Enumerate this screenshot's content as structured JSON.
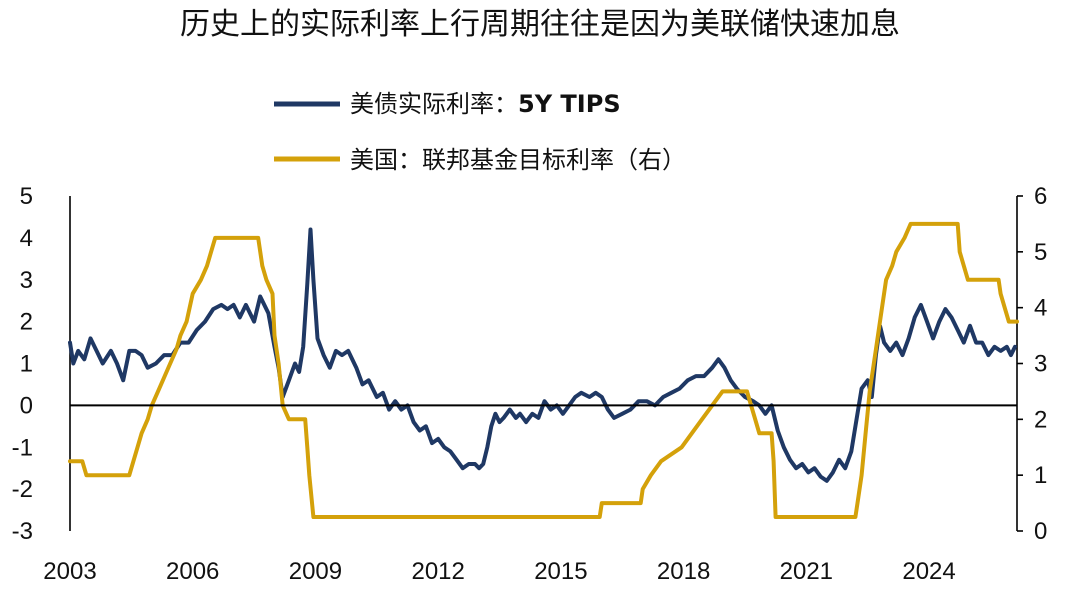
{
  "chart_data": {
    "type": "line",
    "title": "历史上的实际利率上行周期往往是因为美联储快速加息",
    "x_ticks": [
      "2003",
      "2006",
      "2009",
      "2012",
      "2015",
      "2018",
      "2021",
      "2024"
    ],
    "x_range": [
      2003.0,
      2026.15
    ],
    "left_axis": {
      "ylim": [
        -3,
        5
      ],
      "ticks": [
        "5",
        "4",
        "3",
        "2",
        "1",
        "0",
        "-1",
        "-2",
        "-3"
      ]
    },
    "right_axis": {
      "ylim": [
        0,
        6
      ],
      "ticks": [
        "6",
        "5",
        "4",
        "3",
        "2",
        "1",
        "0"
      ]
    },
    "legend": {
      "placement": "top-center",
      "series1_prefix": "美债实际利率：",
      "series1_suffix": "5Y TIPS",
      "series2_label": "美国：联邦基金目标利率（右）"
    },
    "colors": {
      "tips": "#1F3864",
      "fed": "#D4A10A"
    },
    "series": [
      {
        "axis": "left",
        "points": [
          [
            2003.0,
            1.5
          ],
          [
            2003.08,
            1.0
          ],
          [
            2003.2,
            1.3
          ],
          [
            2003.35,
            1.1
          ],
          [
            2003.5,
            1.6
          ],
          [
            2003.65,
            1.3
          ],
          [
            2003.8,
            1.0
          ],
          [
            2004.0,
            1.3
          ],
          [
            2004.15,
            1.0
          ],
          [
            2004.3,
            0.6
          ],
          [
            2004.45,
            1.3
          ],
          [
            2004.6,
            1.3
          ],
          [
            2004.75,
            1.2
          ],
          [
            2004.9,
            0.9
          ],
          [
            2005.1,
            1.0
          ],
          [
            2005.3,
            1.2
          ],
          [
            2005.5,
            1.2
          ],
          [
            2005.7,
            1.5
          ],
          [
            2005.9,
            1.5
          ],
          [
            2006.1,
            1.8
          ],
          [
            2006.3,
            2.0
          ],
          [
            2006.5,
            2.3
          ],
          [
            2006.7,
            2.4
          ],
          [
            2006.85,
            2.3
          ],
          [
            2007.0,
            2.4
          ],
          [
            2007.15,
            2.1
          ],
          [
            2007.3,
            2.4
          ],
          [
            2007.5,
            2.0
          ],
          [
            2007.65,
            2.6
          ],
          [
            2007.85,
            2.2
          ],
          [
            2008.0,
            1.4
          ],
          [
            2008.1,
            0.9
          ],
          [
            2008.2,
            0.2
          ],
          [
            2008.35,
            0.6
          ],
          [
            2008.5,
            1.0
          ],
          [
            2008.6,
            0.8
          ],
          [
            2008.7,
            1.4
          ],
          [
            2008.8,
            2.9
          ],
          [
            2008.88,
            4.2
          ],
          [
            2008.95,
            3.0
          ],
          [
            2009.05,
            1.6
          ],
          [
            2009.2,
            1.2
          ],
          [
            2009.35,
            0.9
          ],
          [
            2009.5,
            1.3
          ],
          [
            2009.65,
            1.2
          ],
          [
            2009.8,
            1.3
          ],
          [
            2010.0,
            0.9
          ],
          [
            2010.15,
            0.5
          ],
          [
            2010.3,
            0.6
          ],
          [
            2010.5,
            0.2
          ],
          [
            2010.65,
            0.3
          ],
          [
            2010.8,
            -0.1
          ],
          [
            2010.95,
            0.1
          ],
          [
            2011.1,
            -0.1
          ],
          [
            2011.25,
            0.0
          ],
          [
            2011.4,
            -0.4
          ],
          [
            2011.55,
            -0.6
          ],
          [
            2011.7,
            -0.5
          ],
          [
            2011.85,
            -0.9
          ],
          [
            2012.0,
            -0.8
          ],
          [
            2012.15,
            -1.0
          ],
          [
            2012.3,
            -1.1
          ],
          [
            2012.45,
            -1.3
          ],
          [
            2012.6,
            -1.5
          ],
          [
            2012.75,
            -1.4
          ],
          [
            2012.9,
            -1.4
          ],
          [
            2013.0,
            -1.5
          ],
          [
            2013.1,
            -1.4
          ],
          [
            2013.2,
            -1.0
          ],
          [
            2013.3,
            -0.5
          ],
          [
            2013.4,
            -0.2
          ],
          [
            2013.5,
            -0.4
          ],
          [
            2013.6,
            -0.3
          ],
          [
            2013.75,
            -0.1
          ],
          [
            2013.9,
            -0.3
          ],
          [
            2014.0,
            -0.2
          ],
          [
            2014.15,
            -0.4
          ],
          [
            2014.3,
            -0.2
          ],
          [
            2014.45,
            -0.3
          ],
          [
            2014.6,
            0.1
          ],
          [
            2014.75,
            -0.1
          ],
          [
            2014.9,
            0.0
          ],
          [
            2015.05,
            -0.2
          ],
          [
            2015.2,
            0.0
          ],
          [
            2015.35,
            0.2
          ],
          [
            2015.5,
            0.3
          ],
          [
            2015.7,
            0.2
          ],
          [
            2015.85,
            0.3
          ],
          [
            2016.0,
            0.2
          ],
          [
            2016.15,
            -0.1
          ],
          [
            2016.3,
            -0.3
          ],
          [
            2016.5,
            -0.2
          ],
          [
            2016.7,
            -0.1
          ],
          [
            2016.9,
            0.1
          ],
          [
            2017.1,
            0.1
          ],
          [
            2017.3,
            0.0
          ],
          [
            2017.5,
            0.2
          ],
          [
            2017.7,
            0.3
          ],
          [
            2017.9,
            0.4
          ],
          [
            2018.1,
            0.6
          ],
          [
            2018.3,
            0.7
          ],
          [
            2018.5,
            0.7
          ],
          [
            2018.7,
            0.9
          ],
          [
            2018.85,
            1.1
          ],
          [
            2019.0,
            0.9
          ],
          [
            2019.15,
            0.6
          ],
          [
            2019.3,
            0.4
          ],
          [
            2019.5,
            0.2
          ],
          [
            2019.7,
            0.1
          ],
          [
            2019.85,
            0.0
          ],
          [
            2020.0,
            -0.2
          ],
          [
            2020.15,
            0.0
          ],
          [
            2020.3,
            -0.6
          ],
          [
            2020.45,
            -1.0
          ],
          [
            2020.6,
            -1.3
          ],
          [
            2020.75,
            -1.5
          ],
          [
            2020.9,
            -1.4
          ],
          [
            2021.05,
            -1.6
          ],
          [
            2021.2,
            -1.5
          ],
          [
            2021.35,
            -1.7
          ],
          [
            2021.5,
            -1.8
          ],
          [
            2021.65,
            -1.6
          ],
          [
            2021.8,
            -1.3
          ],
          [
            2021.95,
            -1.5
          ],
          [
            2022.1,
            -1.1
          ],
          [
            2022.2,
            -0.5
          ],
          [
            2022.35,
            0.4
          ],
          [
            2022.5,
            0.6
          ],
          [
            2022.6,
            0.2
          ],
          [
            2022.7,
            1.2
          ],
          [
            2022.8,
            1.9
          ],
          [
            2022.9,
            1.5
          ],
          [
            2023.05,
            1.3
          ],
          [
            2023.2,
            1.5
          ],
          [
            2023.35,
            1.2
          ],
          [
            2023.5,
            1.6
          ],
          [
            2023.65,
            2.1
          ],
          [
            2023.8,
            2.4
          ],
          [
            2023.95,
            2.0
          ],
          [
            2024.1,
            1.6
          ],
          [
            2024.25,
            2.0
          ],
          [
            2024.4,
            2.3
          ],
          [
            2024.55,
            2.1
          ],
          [
            2024.7,
            1.8
          ],
          [
            2024.85,
            1.5
          ],
          [
            2025.0,
            1.9
          ],
          [
            2025.15,
            1.5
          ],
          [
            2025.3,
            1.5
          ],
          [
            2025.45,
            1.2
          ],
          [
            2025.6,
            1.4
          ],
          [
            2025.75,
            1.3
          ],
          [
            2025.9,
            1.4
          ],
          [
            2026.0,
            1.2
          ],
          [
            2026.1,
            1.4
          ]
        ]
      },
      {
        "axis": "right",
        "points": [
          [
            2003.0,
            1.25
          ],
          [
            2003.3,
            1.25
          ],
          [
            2003.4,
            1.0
          ],
          [
            2004.45,
            1.0
          ],
          [
            2004.55,
            1.25
          ],
          [
            2004.65,
            1.5
          ],
          [
            2004.75,
            1.75
          ],
          [
            2004.9,
            2.0
          ],
          [
            2005.0,
            2.25
          ],
          [
            2005.15,
            2.5
          ],
          [
            2005.3,
            2.75
          ],
          [
            2005.45,
            3.0
          ],
          [
            2005.6,
            3.25
          ],
          [
            2005.7,
            3.5
          ],
          [
            2005.85,
            3.75
          ],
          [
            2006.0,
            4.25
          ],
          [
            2006.2,
            4.5
          ],
          [
            2006.35,
            4.75
          ],
          [
            2006.45,
            5.0
          ],
          [
            2006.55,
            5.25
          ],
          [
            2007.6,
            5.25
          ],
          [
            2007.7,
            4.75
          ],
          [
            2007.8,
            4.5
          ],
          [
            2007.95,
            4.25
          ],
          [
            2008.0,
            3.5
          ],
          [
            2008.1,
            3.0
          ],
          [
            2008.2,
            2.25
          ],
          [
            2008.35,
            2.0
          ],
          [
            2008.75,
            2.0
          ],
          [
            2008.8,
            1.5
          ],
          [
            2008.85,
            1.0
          ],
          [
            2008.95,
            0.25
          ],
          [
            2015.95,
            0.25
          ],
          [
            2016.0,
            0.5
          ],
          [
            2016.95,
            0.5
          ],
          [
            2017.0,
            0.75
          ],
          [
            2017.2,
            1.0
          ],
          [
            2017.45,
            1.25
          ],
          [
            2017.95,
            1.5
          ],
          [
            2018.2,
            1.75
          ],
          [
            2018.45,
            2.0
          ],
          [
            2018.7,
            2.25
          ],
          [
            2018.95,
            2.5
          ],
          [
            2019.55,
            2.5
          ],
          [
            2019.65,
            2.25
          ],
          [
            2019.75,
            2.0
          ],
          [
            2019.85,
            1.75
          ],
          [
            2020.15,
            1.75
          ],
          [
            2020.2,
            1.25
          ],
          [
            2020.25,
            0.25
          ],
          [
            2022.2,
            0.25
          ],
          [
            2022.25,
            0.5
          ],
          [
            2022.35,
            1.0
          ],
          [
            2022.45,
            1.75
          ],
          [
            2022.55,
            2.5
          ],
          [
            2022.7,
            3.25
          ],
          [
            2022.85,
            4.0
          ],
          [
            2022.95,
            4.5
          ],
          [
            2023.1,
            4.75
          ],
          [
            2023.2,
            5.0
          ],
          [
            2023.4,
            5.25
          ],
          [
            2023.55,
            5.5
          ],
          [
            2024.7,
            5.5
          ],
          [
            2024.75,
            5.0
          ],
          [
            2024.85,
            4.75
          ],
          [
            2024.95,
            4.5
          ],
          [
            2025.7,
            4.5
          ],
          [
            2025.75,
            4.25
          ],
          [
            2025.85,
            4.0
          ],
          [
            2025.95,
            3.75
          ],
          [
            2026.15,
            3.75
          ]
        ]
      }
    ]
  }
}
